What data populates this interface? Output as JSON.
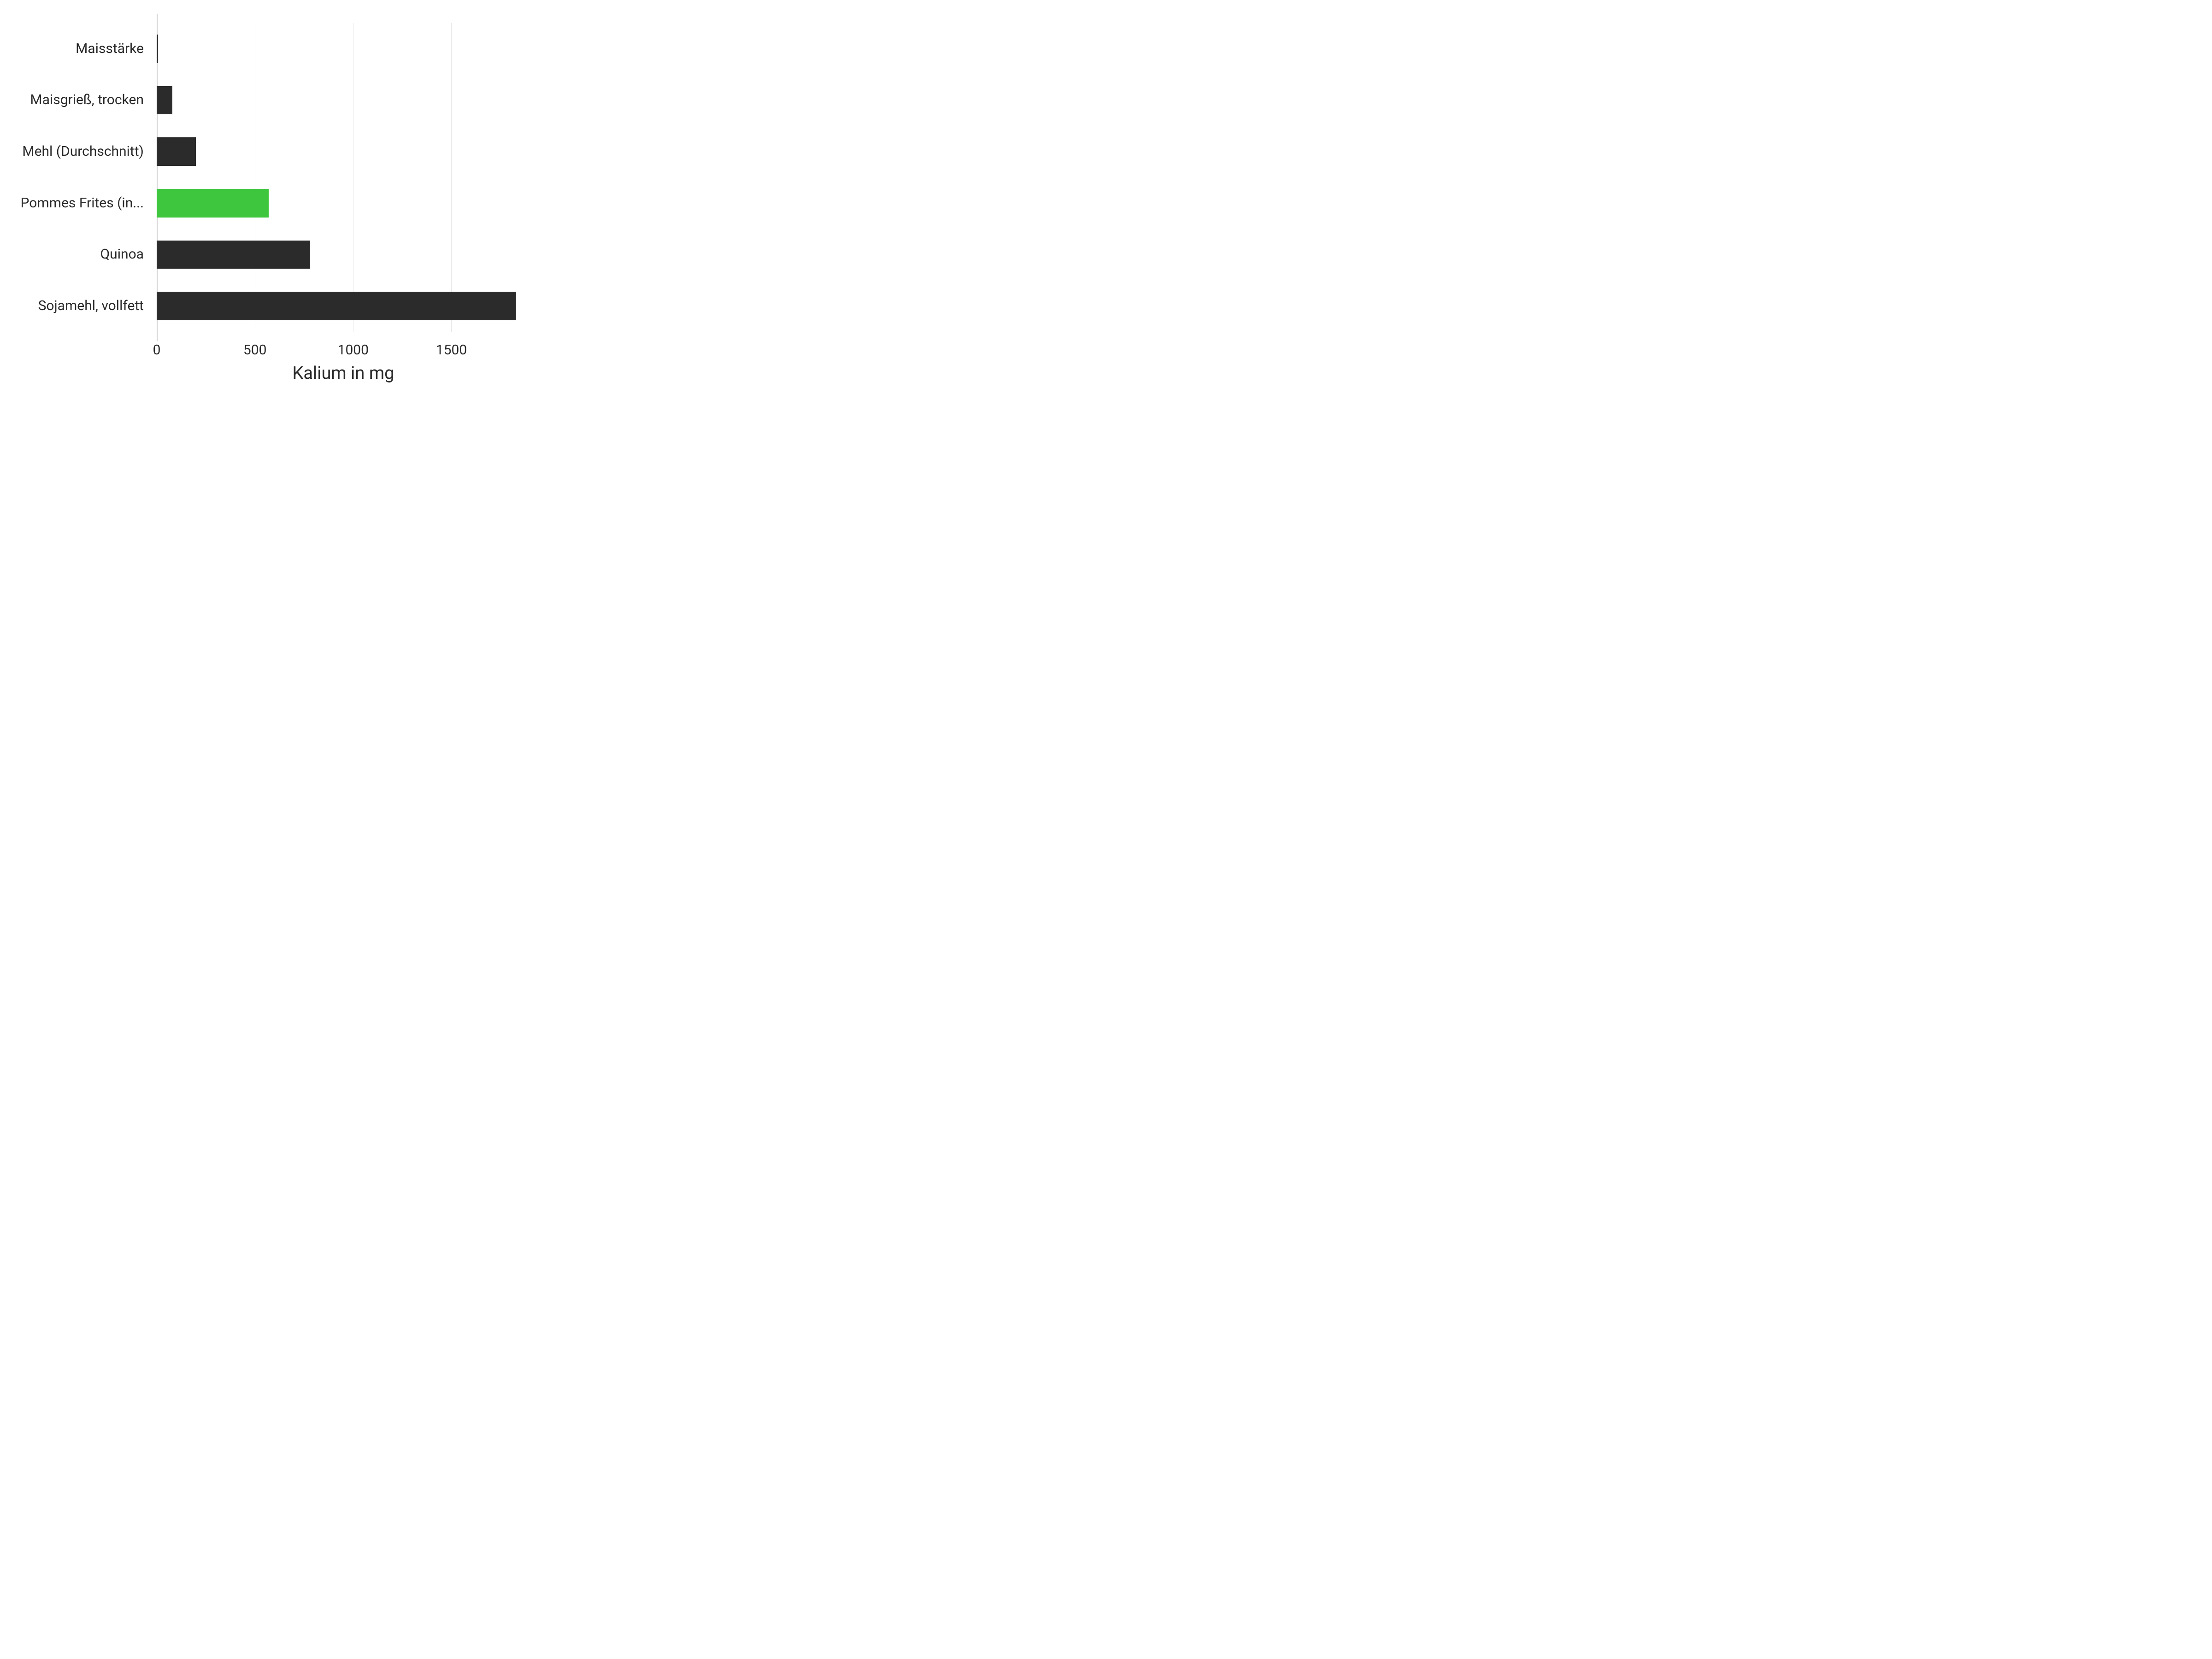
{
  "chart": {
    "type": "bar-horizontal",
    "x_axis": {
      "title": "Kalium in mg",
      "min": 0,
      "max": 1900,
      "ticks": [
        0,
        500,
        1000,
        1500
      ],
      "title_fontsize": 38,
      "tick_fontsize": 30
    },
    "y_axis": {
      "label_fontsize": 30
    },
    "categories": [
      "Maisstärke",
      "Maisgrieß, trocken",
      "Mehl (Durchschnitt)",
      "Pommes Frites (in...",
      "Quinoa",
      "Sojamehl, vollfett"
    ],
    "values": [
      8,
      80,
      200,
      570,
      780,
      1830
    ],
    "bar_colors": [
      "#2b2b2b",
      "#2b2b2b",
      "#2b2b2b",
      "#3ec63e",
      "#2b2b2b",
      "#2b2b2b"
    ],
    "highlight_color": "#3ec63e",
    "default_bar_color": "#2b2b2b",
    "background_color": "#ffffff",
    "grid_color": "#e6e6e6",
    "axis_line_color": "#cfcfcf",
    "bar_height_ratio": 0.55
  }
}
